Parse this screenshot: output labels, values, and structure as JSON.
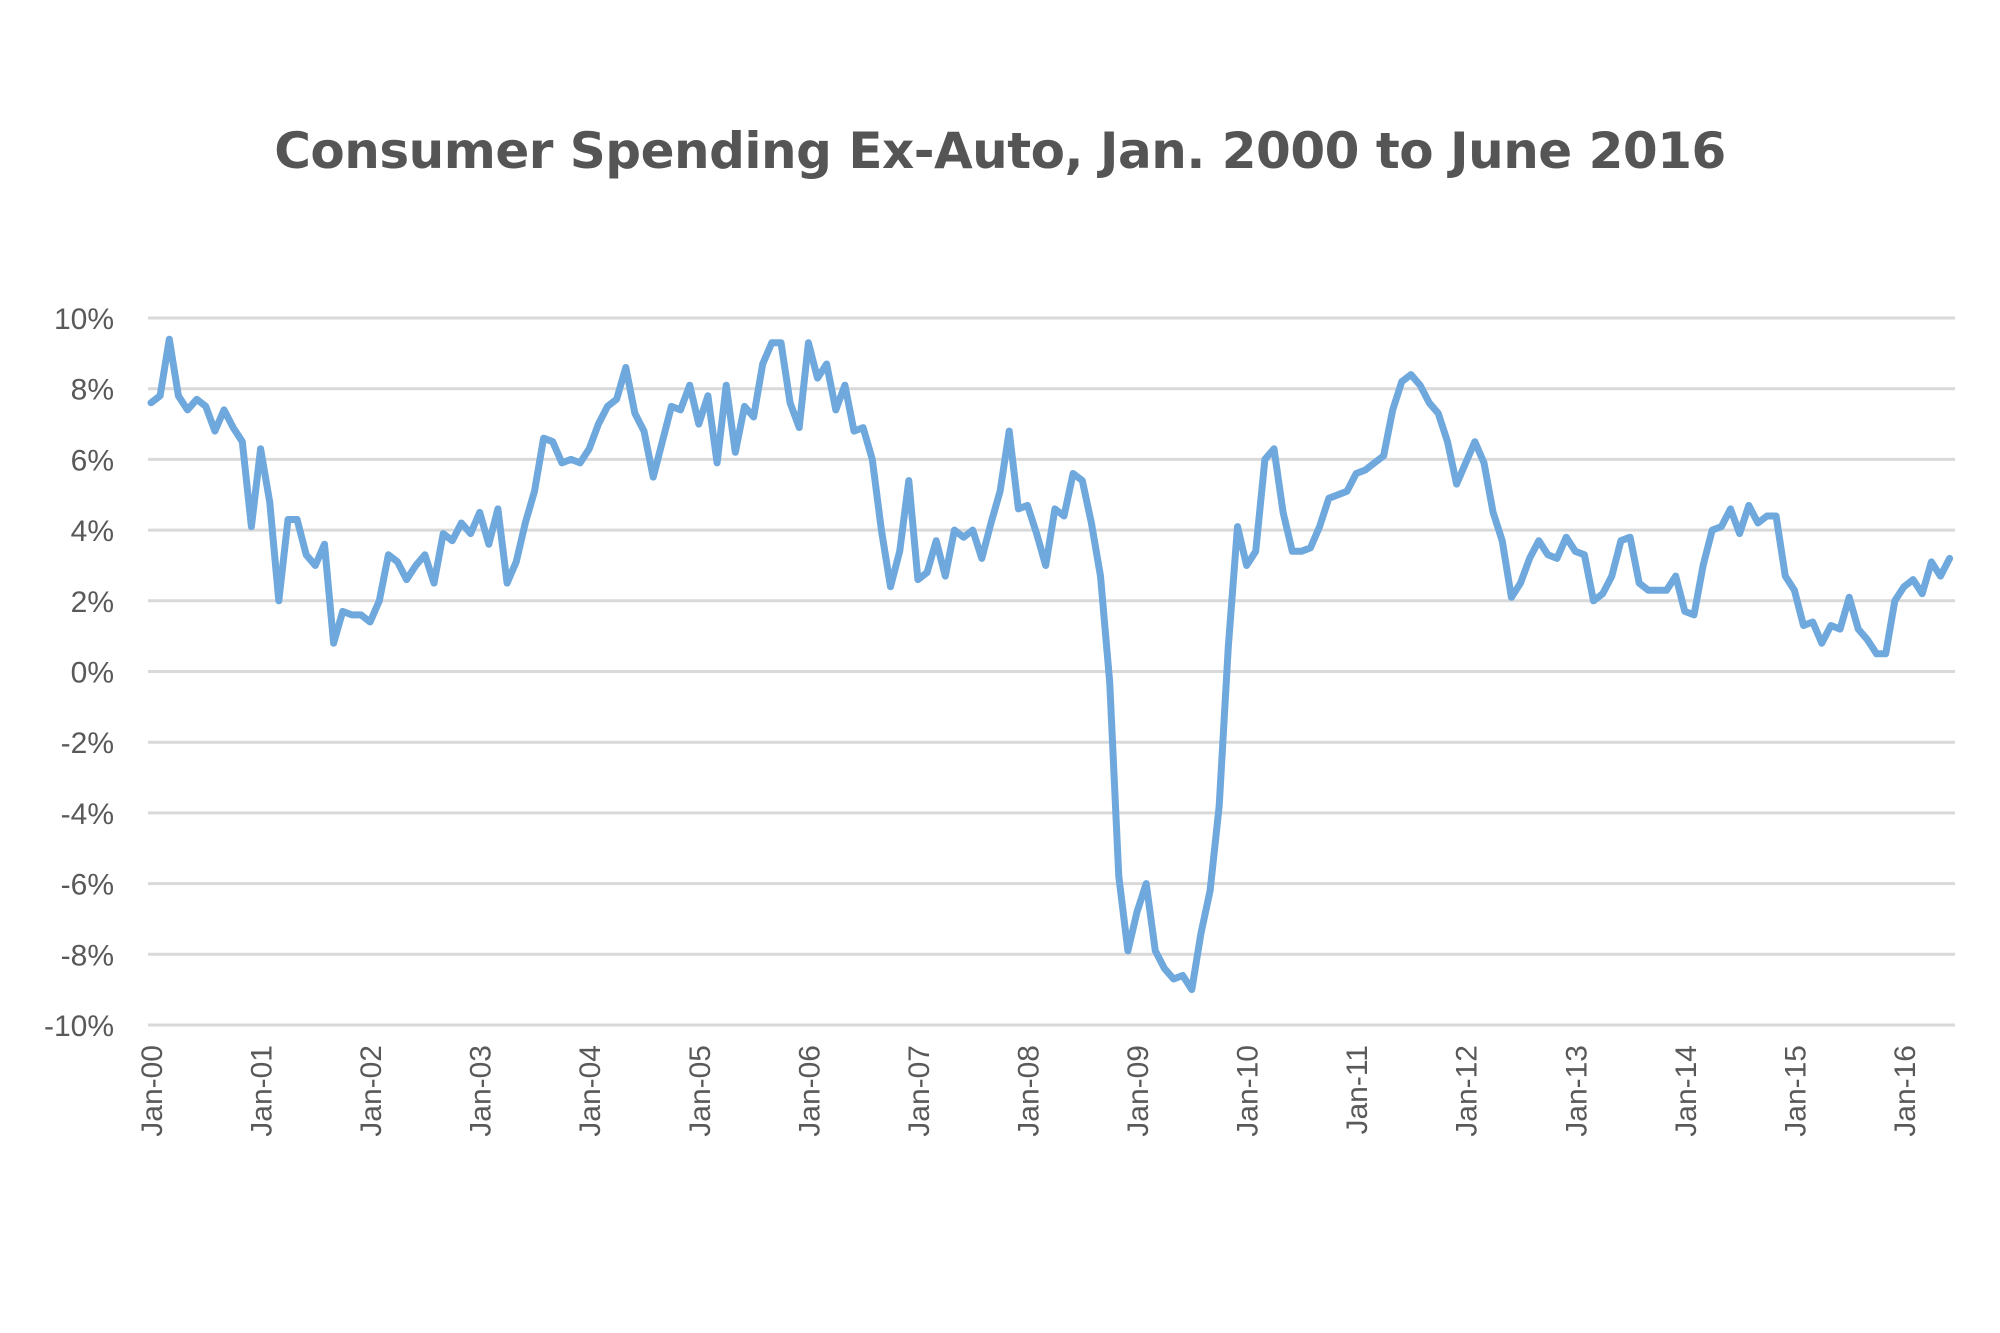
{
  "chart_data": {
    "type": "line",
    "title": "Consumer Spending Ex-Auto, Jan. 2000 to June 2016",
    "xlabel": "",
    "ylabel": "",
    "ylim": [
      -10,
      10
    ],
    "y_ticks": [
      10,
      8,
      6,
      4,
      2,
      0,
      -2,
      -4,
      -6,
      -8,
      -10
    ],
    "y_tick_labels": [
      "10%",
      "8%",
      "6%",
      "4%",
      "2%",
      "0%",
      "-2%",
      "-4%",
      "-6%",
      "-8%",
      "-10%"
    ],
    "x_tick_labels": [
      "Jan-00",
      "Jan-01",
      "Jan-02",
      "Jan-03",
      "Jan-04",
      "Jan-05",
      "Jan-06",
      "Jan-07",
      "Jan-08",
      "Jan-09",
      "Jan-10",
      "Jan-11",
      "Jan-12",
      "Jan-13",
      "Jan-14",
      "Jan-15",
      "Jan-16"
    ],
    "x_range": [
      "Jan-00",
      "Jun-16"
    ],
    "grid": true,
    "legend": "none",
    "line_color": "#6fa8dc",
    "series": [
      {
        "color": "#6fa8dc",
        "values": [
          7.6,
          7.8,
          9.4,
          7.8,
          7.4,
          7.7,
          7.5,
          6.8,
          7.4,
          6.9,
          6.5,
          4.1,
          6.3,
          4.8,
          2.0,
          4.3,
          4.3,
          3.3,
          3.0,
          3.6,
          0.8,
          1.7,
          1.6,
          1.6,
          1.4,
          2.0,
          3.3,
          3.1,
          2.6,
          3.0,
          3.3,
          2.5,
          3.9,
          3.7,
          4.2,
          3.9,
          4.5,
          3.6,
          4.6,
          2.5,
          3.1,
          4.2,
          5.1,
          6.6,
          6.5,
          5.9,
          6.0,
          5.9,
          6.3,
          7.0,
          7.5,
          7.7,
          8.6,
          7.3,
          6.8,
          5.5,
          6.5,
          7.5,
          7.4,
          8.1,
          7.0,
          7.8,
          5.9,
          8.1,
          6.2,
          7.5,
          7.2,
          8.7,
          9.3,
          9.3,
          7.6,
          6.9,
          9.3,
          8.3,
          8.7,
          7.4,
          8.1,
          6.8,
          6.9,
          6.0,
          4.0,
          2.4,
          3.4,
          5.4,
          2.6,
          2.8,
          3.7,
          2.7,
          4.0,
          3.8,
          4.0,
          3.2,
          4.2,
          5.1,
          6.8,
          4.6,
          4.7,
          3.9,
          3.0,
          4.6,
          4.4,
          5.6,
          5.4,
          4.2,
          2.7,
          -0.3,
          -5.8,
          -7.9,
          -6.8,
          -6.0,
          -7.9,
          -8.4,
          -8.7,
          -8.6,
          -9.0,
          -7.4,
          -6.2,
          -3.8,
          0.7,
          4.1,
          3.0,
          3.4,
          6.0,
          6.3,
          4.5,
          3.4,
          3.4,
          3.5,
          4.1,
          4.9,
          5.0,
          5.1,
          5.6,
          5.7,
          5.9,
          6.1,
          7.4,
          8.2,
          8.4,
          8.1,
          7.6,
          7.3,
          6.5,
          5.3,
          5.9,
          6.5,
          5.9,
          4.5,
          3.7,
          2.1,
          2.5,
          3.2,
          3.7,
          3.3,
          3.2,
          3.8,
          3.4,
          3.3,
          2.0,
          2.2,
          2.7,
          3.7,
          3.8,
          2.5,
          2.3,
          2.3,
          2.3,
          2.7,
          1.7,
          1.6,
          3.0,
          4.0,
          4.1,
          4.6,
          3.9,
          4.7,
          4.2,
          4.4,
          4.4,
          2.7,
          2.3,
          1.3,
          1.4,
          0.8,
          1.3,
          1.2,
          2.1,
          1.2,
          0.9,
          0.5,
          0.5,
          2.0,
          2.4,
          2.6,
          2.2,
          3.1,
          2.7,
          3.2
        ]
      }
    ]
  }
}
